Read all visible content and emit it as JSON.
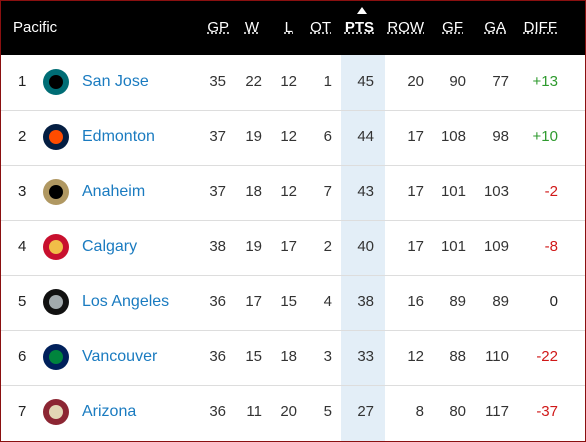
{
  "header": {
    "title": "Pacific",
    "columns": [
      "GP",
      "W",
      "L",
      "OT",
      "PTS",
      "ROW",
      "GF",
      "GA",
      "DIFF"
    ]
  },
  "table": {
    "rows": [
      [
        1,
        "San Jose",
        35,
        22,
        12,
        1,
        45,
        20,
        90,
        77,
        "+13"
      ],
      [
        2,
        "Edmonton",
        37,
        19,
        12,
        6,
        44,
        17,
        108,
        98,
        "+10"
      ],
      [
        3,
        "Anaheim",
        37,
        18,
        12,
        7,
        43,
        17,
        101,
        103,
        "-2"
      ],
      [
        4,
        "Calgary",
        38,
        19,
        17,
        2,
        40,
        17,
        101,
        109,
        "-8"
      ],
      [
        5,
        "Los Angeles",
        36,
        17,
        15,
        4,
        38,
        16,
        89,
        89,
        "0"
      ],
      [
        6,
        "Vancouver",
        36,
        15,
        18,
        3,
        33,
        12,
        88,
        110,
        "-22"
      ],
      [
        7,
        "Arizona",
        36,
        11,
        20,
        5,
        27,
        8,
        80,
        117,
        "-37"
      ]
    ]
  }
}
